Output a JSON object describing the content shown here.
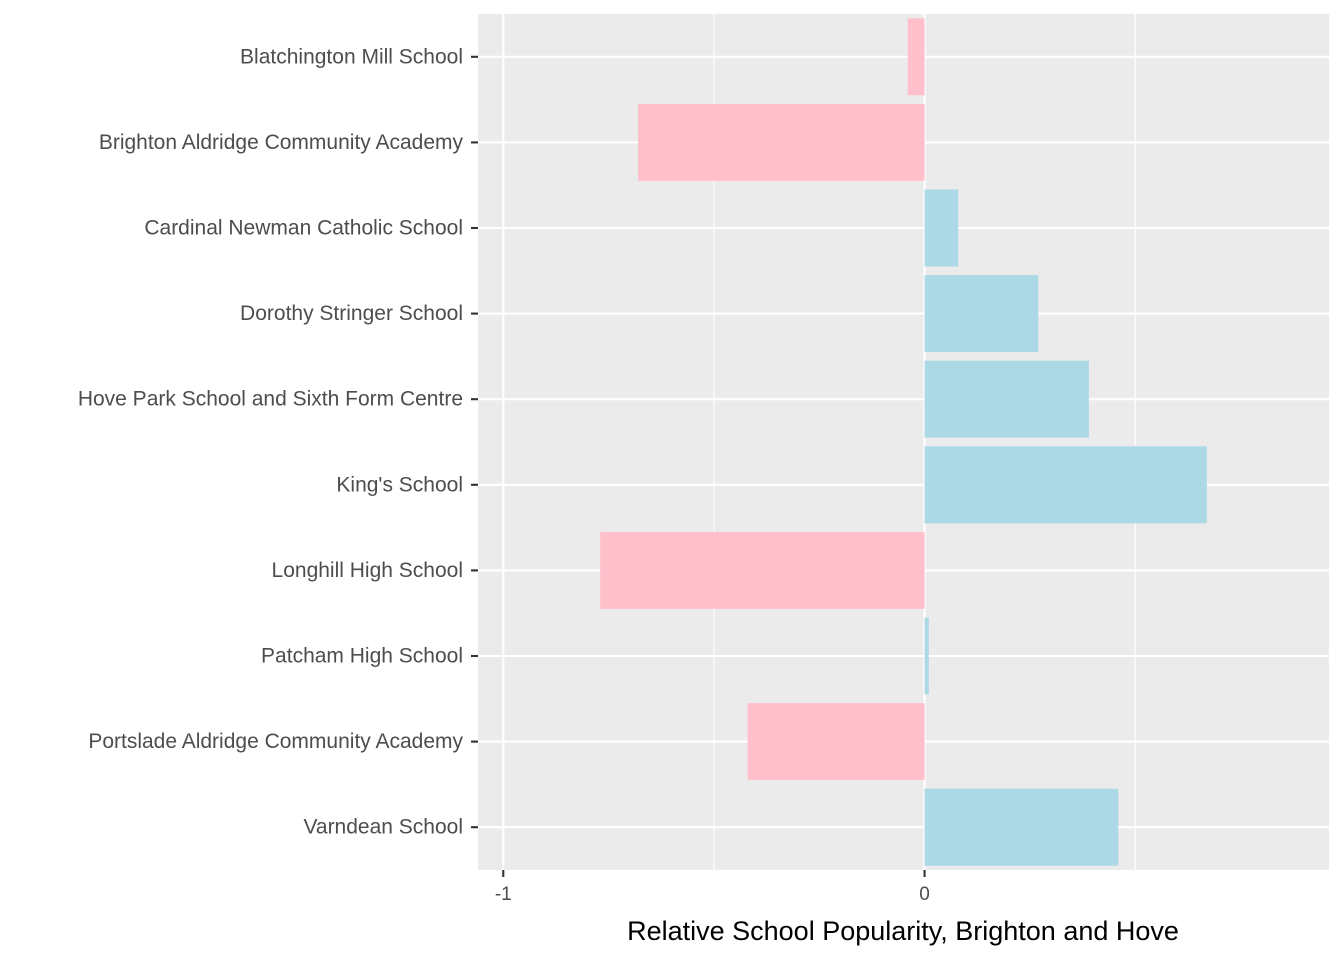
{
  "chart_data": {
    "type": "bar",
    "orientation": "horizontal",
    "title": "",
    "xlabel": "Relative School Popularity, Brighton and Hove",
    "ylabel": "",
    "xlim": [
      -1.06,
      0.96
    ],
    "x_ticks": [
      -1,
      0
    ],
    "x_tick_labels": [
      "-1",
      "0"
    ],
    "categories": [
      "Blatchington Mill School",
      "Brighton Aldridge Community Academy",
      "Cardinal Newman Catholic School",
      "Dorothy Stringer School",
      "Hove Park School and Sixth Form Centre",
      "King's School",
      "Longhill High School",
      "Patcham High School",
      "Portslade Aldridge Community Academy",
      "Varndean School"
    ],
    "values": [
      -0.04,
      -0.68,
      0.08,
      0.27,
      0.39,
      0.67,
      -0.77,
      0.01,
      -0.42,
      0.46
    ],
    "colors": {
      "positive": "#ADD8E6",
      "negative": "#FFC0CB",
      "panel": "#EBEBEB",
      "grid": "#FFFFFF"
    },
    "grid": true,
    "legend": "none"
  }
}
